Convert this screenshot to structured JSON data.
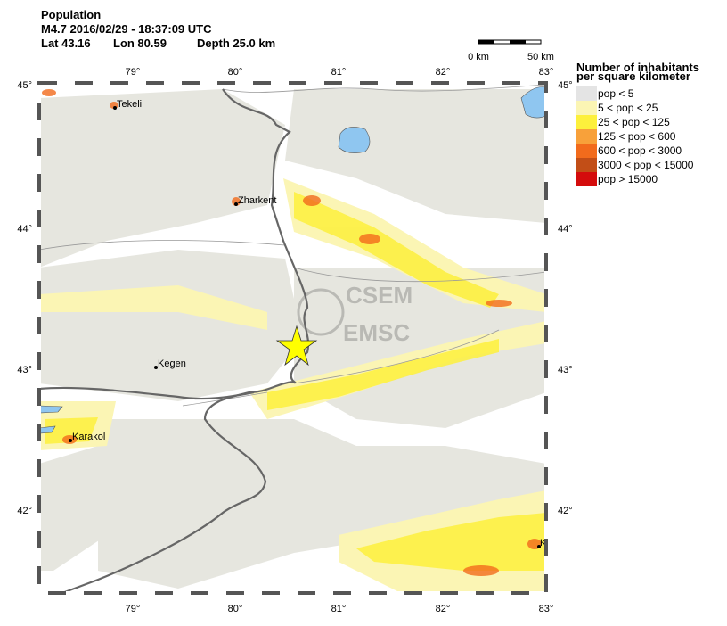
{
  "header": {
    "title": "Population",
    "event": "M4.7  2016/02/29 - 18:37:09 UTC",
    "lat": "Lat 43.16",
    "lon": "Lon 80.59",
    "depth": "Depth  25.0 km"
  },
  "scale_bar": {
    "start": "0 km",
    "end": "50 km"
  },
  "lon_labels": [
    "79°",
    "80°",
    "81°",
    "82°",
    "83°"
  ],
  "lat_labels": [
    "45°",
    "44°",
    "43°",
    "42°"
  ],
  "cities": [
    "Tekeli",
    "Zharkent",
    "Kegen",
    "Karakol",
    "K"
  ],
  "watermark": {
    "top": "CSEM",
    "bottom": "EMSC"
  },
  "legend": {
    "title_line1": "Number of inhabitants",
    "title_line2": "per square kilometer",
    "items": [
      {
        "label": "pop < 5",
        "color": "#e4e4e4"
      },
      {
        "label": "5 < pop < 25",
        "color": "#fbf5b4"
      },
      {
        "label": "25 < pop < 125",
        "color": "#fdf03c"
      },
      {
        "label": "125 < pop < 600",
        "color": "#f8a13a"
      },
      {
        "label": "600 < pop < 3000",
        "color": "#f26b1c"
      },
      {
        "label": "3000 < pop < 15000",
        "color": "#c24e17"
      },
      {
        "label": "pop > 15000",
        "color": "#d40c0c"
      }
    ]
  }
}
